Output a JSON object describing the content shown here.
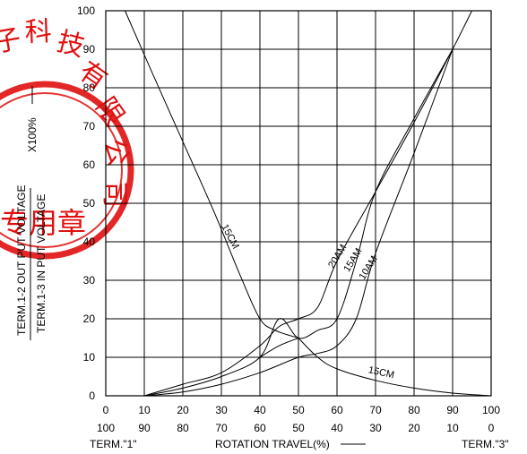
{
  "chart_data": {
    "type": "line",
    "x_ticks_top": [
      "0",
      "10",
      "20",
      "30",
      "40",
      "50",
      "60",
      "70",
      "80",
      "90",
      "100"
    ],
    "x_ticks_bottom": [
      "100",
      "90",
      "80",
      "70",
      "60",
      "50",
      "40",
      "30",
      "20",
      "10",
      "0"
    ],
    "y_ticks": [
      "0",
      "10",
      "20",
      "30",
      "40",
      "50",
      "60",
      "70",
      "80",
      "90",
      "100"
    ],
    "xlim": [
      0,
      100
    ],
    "ylim": [
      0,
      100
    ],
    "grid": true,
    "x_left_label": "TERM.\"1\"",
    "x_center_label": "ROTATION TRAVEL(%)",
    "x_right_label": "TERM.\"3\"",
    "y_label_numerator": "TERM.1-2 OUT PUT VOLTAGE",
    "y_label_denominator": "TERM.1-3 IN PUT VOLTAGE",
    "y_label_multiplier": "X100%",
    "series": [
      {
        "name": "15CM",
        "label_at": [
          30,
          44
        ],
        "label_angle": 62,
        "x": [
          5,
          12,
          20,
          28,
          35,
          40,
          44,
          50
        ],
        "y": [
          100,
          84,
          66,
          48,
          31,
          20,
          17,
          15
        ]
      },
      {
        "name": "15CM",
        "label_at": [
          68,
          6
        ],
        "label_angle": 12,
        "x": [
          50,
          55,
          60,
          70,
          80,
          90,
          100
        ],
        "y": [
          15,
          10,
          7,
          4,
          2,
          0.7,
          0
        ]
      },
      {
        "name": "20AM",
        "label_at": [
          59,
          33
        ],
        "label_angle": -58,
        "x": [
          10,
          20,
          30,
          40,
          45,
          50,
          55,
          60,
          70,
          80,
          90,
          95
        ],
        "y": [
          0,
          3,
          6,
          13,
          18,
          20,
          23,
          35,
          53,
          71,
          90,
          100
        ]
      },
      {
        "name": "15AM",
        "label_at": [
          63,
          32
        ],
        "label_angle": -58,
        "x": [
          10,
          20,
          30,
          40,
          45,
          50,
          55,
          60,
          65,
          70,
          80,
          90
        ],
        "y": [
          0,
          2,
          5,
          10,
          20,
          15,
          17,
          20,
          35,
          53,
          72,
          90
        ]
      },
      {
        "name": "10AM",
        "label_at": [
          67,
          30
        ],
        "label_angle": -58,
        "x": [
          10,
          20,
          30,
          40,
          50,
          55,
          60,
          65,
          70,
          80,
          90
        ],
        "y": [
          0,
          1,
          3,
          6,
          10,
          11,
          13,
          20,
          37,
          63,
          90
        ]
      },
      {
        "name": "",
        "x": [
          40,
          45,
          50
        ],
        "y": [
          10,
          13,
          15
        ]
      }
    ]
  },
  "stamp": {
    "text_chars": [
      "子",
      "科",
      "技",
      "有",
      "限",
      "公",
      "司"
    ],
    "center_text": "专用章",
    "color": "#e01010"
  }
}
